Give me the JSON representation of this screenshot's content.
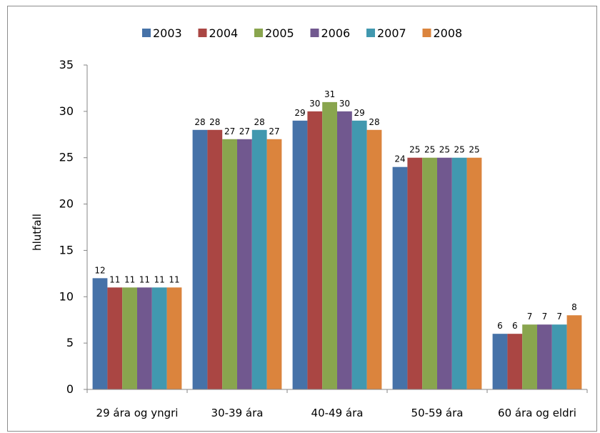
{
  "chart_data": {
    "type": "bar",
    "title": "",
    "xlabel": "",
    "ylabel": "hlutfall",
    "ylim": [
      0,
      35
    ],
    "yticks": [
      0,
      5,
      10,
      15,
      20,
      25,
      30,
      35
    ],
    "grid": false,
    "legend_position": "top",
    "categories": [
      "29 ára og yngri",
      "30-39 ára",
      "40-49 ára",
      "50-59 ára",
      "60 ára og eldri"
    ],
    "series": [
      {
        "name": "2003",
        "color": "#4672a8",
        "values": [
          12,
          28,
          29,
          24,
          6
        ]
      },
      {
        "name": "2004",
        "color": "#aa4643",
        "values": [
          11,
          28,
          30,
          25,
          6
        ]
      },
      {
        "name": "2005",
        "color": "#89a54e",
        "values": [
          11,
          27,
          31,
          25,
          7
        ]
      },
      {
        "name": "2006",
        "color": "#71588f",
        "values": [
          11,
          27,
          30,
          25,
          7
        ]
      },
      {
        "name": "2007",
        "color": "#4198af",
        "values": [
          11,
          28,
          29,
          25,
          7
        ]
      },
      {
        "name": "2008",
        "color": "#db843d",
        "values": [
          11,
          27,
          28,
          25,
          8
        ]
      }
    ]
  }
}
